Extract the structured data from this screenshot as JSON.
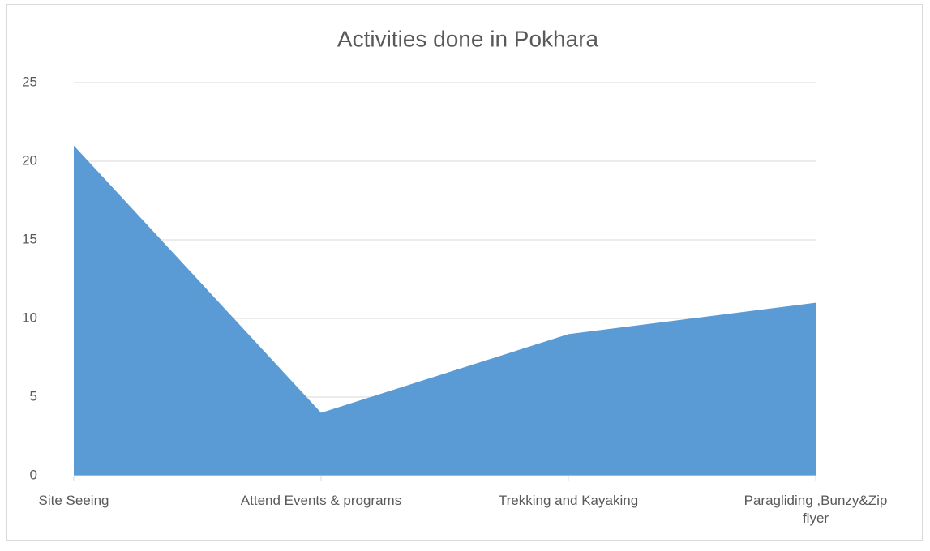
{
  "chart_data": {
    "type": "area",
    "title": "Activities done in Pokhara",
    "categories": [
      "Site Seeing",
      "Attend Events & programs",
      "Trekking and Kayaking",
      "Paragliding ,Bunzy&Zip flyer"
    ],
    "values": [
      21,
      4,
      9,
      11
    ],
    "color": "#5b9bd5",
    "ylim": [
      0,
      25
    ],
    "yticks": [
      0,
      5,
      10,
      15,
      20,
      25
    ],
    "grid": true
  }
}
